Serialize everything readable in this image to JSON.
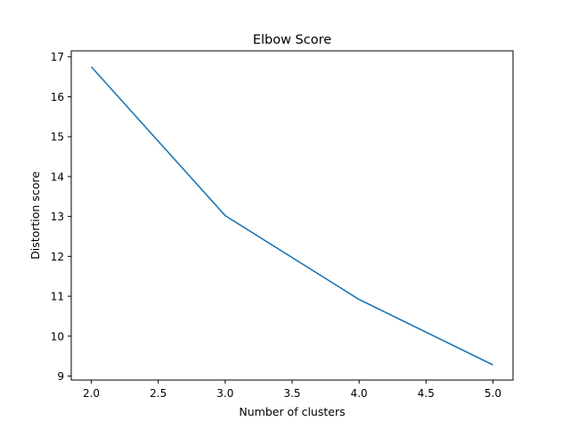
{
  "chart_data": {
    "type": "line",
    "title": "Elbow Score",
    "xlabel": "Number of clusters",
    "ylabel": "Distortion score",
    "x": [
      2,
      3,
      4,
      5
    ],
    "series": [
      {
        "values": [
          16.75,
          13.02,
          10.92,
          9.28
        ],
        "color": "#1f77b4"
      }
    ],
    "xlim": [
      1.85,
      5.15
    ],
    "ylim": [
      8.9,
      17.15
    ],
    "xticks": [
      2.0,
      2.5,
      3.0,
      3.5,
      4.0,
      4.5,
      5.0
    ],
    "xtick_labels": [
      "2.0",
      "2.5",
      "3.0",
      "3.5",
      "4.0",
      "4.5",
      "5.0"
    ],
    "yticks": [
      9,
      10,
      11,
      12,
      13,
      14,
      15,
      16,
      17
    ],
    "ytick_labels": [
      "9",
      "10",
      "11",
      "12",
      "13",
      "14",
      "15",
      "16",
      "17"
    ],
    "grid": false,
    "legend": "none"
  }
}
